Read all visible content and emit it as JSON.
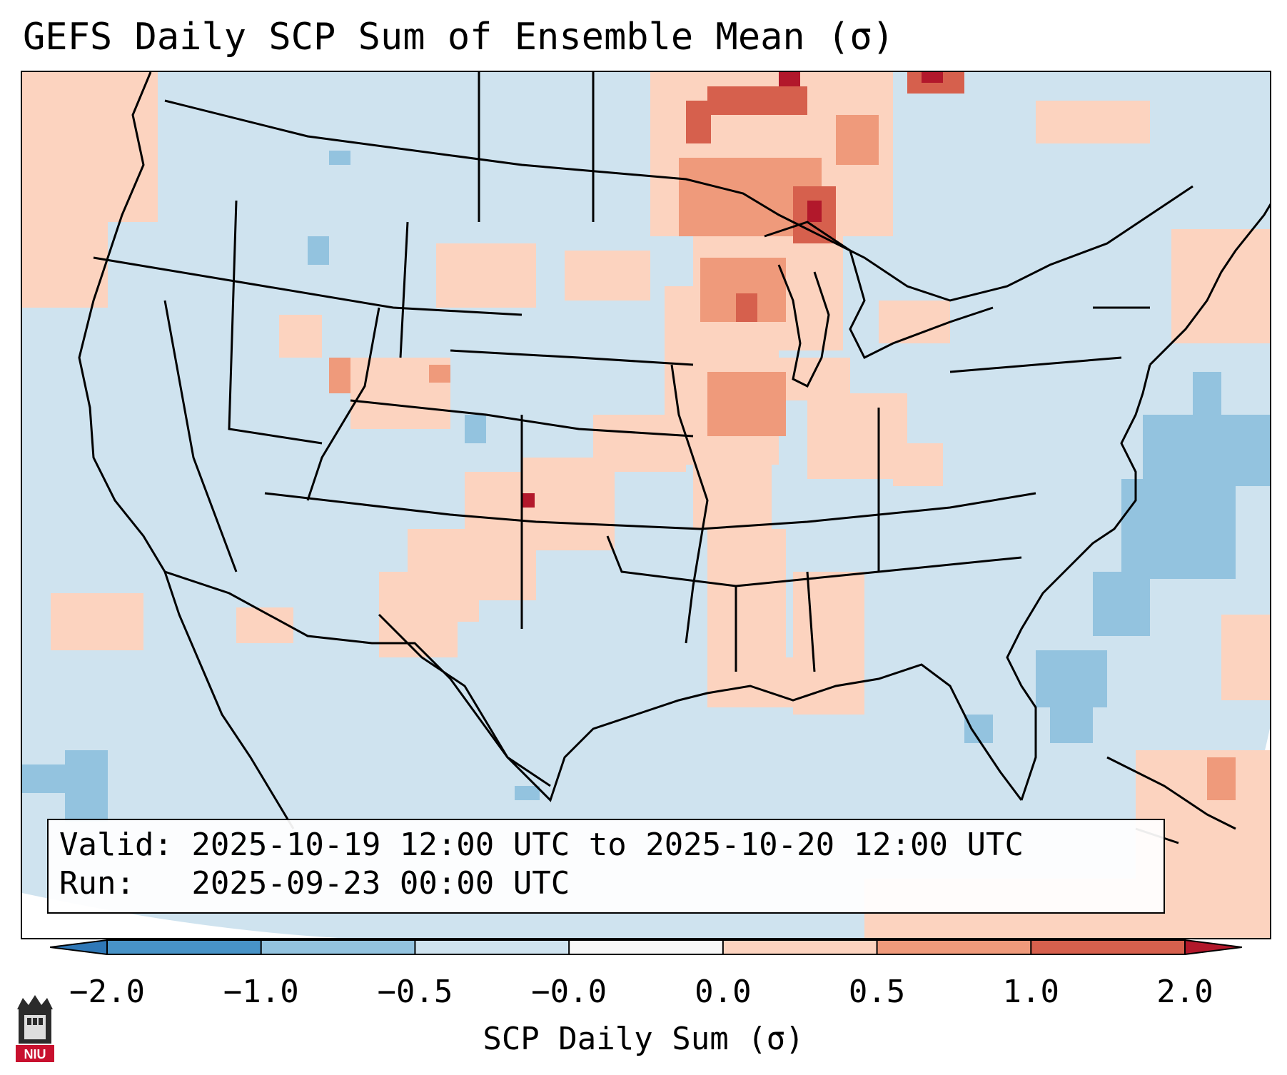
{
  "title": "GEFS Daily SCP Sum of Ensemble Mean (σ)",
  "valid_line": "Valid: 2025-10-19 12:00 UTC to 2025-10-20 12:00 UTC",
  "run_line": "Run:   2025-09-23 00:00 UTC",
  "colorbar": {
    "label": "SCP Daily Sum (σ)",
    "ticks": [
      "−2.0",
      "−1.0",
      "−0.5",
      "−0.0",
      "0.0",
      "0.5",
      "1.0",
      "2.0"
    ],
    "colors": [
      "#2f78b7",
      "#4893c7",
      "#93c3df",
      "#cfe3ef",
      "#f7f7f7",
      "#fcd3bf",
      "#ef9a7b",
      "#d6604d",
      "#b2182b"
    ]
  },
  "logo": {
    "text": "NIU",
    "color": "#c8102e"
  }
}
